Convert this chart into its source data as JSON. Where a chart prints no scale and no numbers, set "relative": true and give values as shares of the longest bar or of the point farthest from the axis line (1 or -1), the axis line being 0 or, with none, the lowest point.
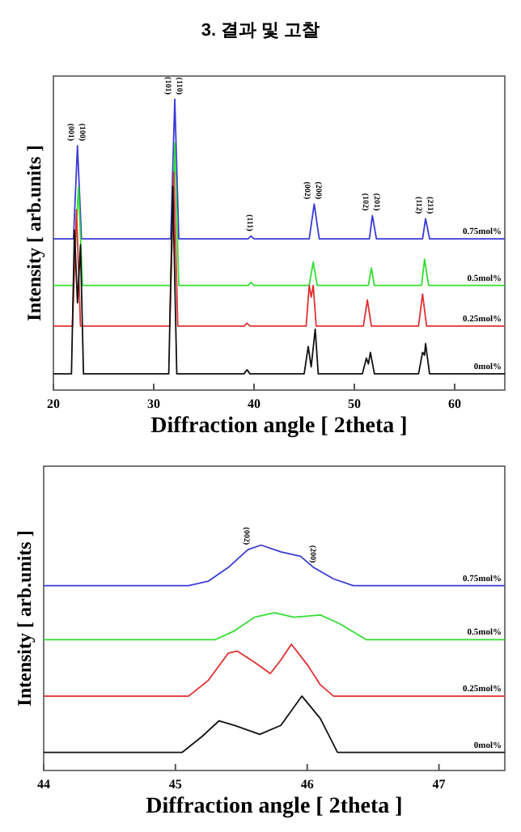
{
  "chart_data": [
    {
      "type": "line",
      "title": "3. 결과 및 고찰",
      "xlabel": "Diffraction angle [ 2theta ]",
      "ylabel": "Intensity [ arb.units ]",
      "relative": true,
      "tick_labels": "x",
      "xlim": [
        20,
        65
      ],
      "xticks": [
        20,
        30,
        40,
        50,
        60
      ],
      "series": [
        {
          "name": "0.75mol%",
          "color": "#3a3ad6",
          "x": [
            20,
            22.0,
            22.4,
            22.8,
            31.7,
            32.1,
            32.5,
            39.4,
            39.7,
            40.0,
            45.5,
            46.0,
            46.5,
            51.5,
            51.8,
            52.2,
            56.8,
            57.1,
            57.5,
            65
          ],
          "values": [
            0.52,
            0.52,
            0.84,
            0.52,
            0.52,
            1.0,
            0.52,
            0.52,
            0.53,
            0.52,
            0.52,
            0.64,
            0.52,
            0.52,
            0.6,
            0.52,
            0.52,
            0.59,
            0.52,
            0.52
          ]
        },
        {
          "name": "0.5mol%",
          "color": "#33dd33",
          "x": [
            20,
            22.0,
            22.5,
            22.9,
            31.7,
            32.1,
            32.5,
            39.4,
            39.7,
            40.0,
            45.5,
            45.9,
            46.3,
            51.4,
            51.7,
            52.0,
            56.7,
            57.0,
            57.4,
            65
          ],
          "values": [
            0.36,
            0.36,
            0.7,
            0.36,
            0.36,
            0.85,
            0.36,
            0.36,
            0.37,
            0.36,
            0.36,
            0.44,
            0.36,
            0.36,
            0.42,
            0.36,
            0.36,
            0.45,
            0.36,
            0.36
          ]
        },
        {
          "name": "0.25mol%",
          "color": "#e03030",
          "x": [
            20,
            21.9,
            22.3,
            22.7,
            31.6,
            32.0,
            32.4,
            39.0,
            39.3,
            39.6,
            45.2,
            45.5,
            45.7,
            45.9,
            46.2,
            50.9,
            51.3,
            51.7,
            56.4,
            56.8,
            57.2,
            65
          ],
          "values": [
            0.22,
            0.22,
            0.62,
            0.22,
            0.22,
            0.75,
            0.22,
            0.22,
            0.23,
            0.22,
            0.22,
            0.36,
            0.32,
            0.36,
            0.22,
            0.22,
            0.31,
            0.22,
            0.22,
            0.33,
            0.22,
            0.22
          ]
        },
        {
          "name": "0mol%",
          "color": "#111111",
          "x": [
            20,
            21.8,
            22.1,
            22.4,
            22.7,
            23.0,
            31.5,
            31.9,
            32.3,
            39.0,
            39.3,
            39.6,
            45.0,
            45.4,
            45.7,
            46.1,
            46.4,
            50.8,
            51.2,
            51.4,
            51.6,
            52.0,
            56.4,
            56.8,
            57.0,
            57.1,
            57.5,
            65
          ],
          "values": [
            0.056,
            0.056,
            0.55,
            0.3,
            0.5,
            0.056,
            0.056,
            0.7,
            0.056,
            0.056,
            0.07,
            0.056,
            0.056,
            0.15,
            0.08,
            0.21,
            0.056,
            0.056,
            0.11,
            0.09,
            0.13,
            0.056,
            0.056,
            0.13,
            0.12,
            0.16,
            0.056,
            0.056
          ]
        }
      ],
      "annotations": [
        {
          "text": "(001)",
          "x": 22.4,
          "y": 0.84
        },
        {
          "text": "(100)",
          "x": 22.4,
          "y": 0.84
        },
        {
          "text": "(101)",
          "x": 32.1,
          "y": 1.0
        },
        {
          "text": "(110)",
          "x": 32.1,
          "y": 1.0
        },
        {
          "text": "(111)",
          "x": 39.7,
          "y": 0.53
        },
        {
          "text": "(002)",
          "x": 46.0,
          "y": 0.64
        },
        {
          "text": "(200)",
          "x": 46.0,
          "y": 0.64
        },
        {
          "text": "(102)",
          "x": 51.8,
          "y": 0.6
        },
        {
          "text": "(201)",
          "x": 51.8,
          "y": 0.6
        },
        {
          "text": "(112)",
          "x": 57.1,
          "y": 0.59
        },
        {
          "text": "(211)",
          "x": 57.1,
          "y": 0.59
        }
      ]
    },
    {
      "type": "line",
      "xlabel": "Diffraction angle [ 2theta ]",
      "ylabel": "Intensity [ arb.units ]",
      "relative": true,
      "tick_labels": "x",
      "xlim": [
        44,
        47.5
      ],
      "xticks": [
        44,
        45,
        46,
        47
      ],
      "series": [
        {
          "name": "0.75mol%",
          "color": "#3a3ad6",
          "x": [
            44,
            45.1,
            45.25,
            45.4,
            45.55,
            45.65,
            45.8,
            45.95,
            46.05,
            46.2,
            46.35,
            47.5
          ],
          "values": [
            0.82,
            0.82,
            0.84,
            0.9,
            0.98,
            1.0,
            0.97,
            0.95,
            0.9,
            0.85,
            0.82,
            0.82
          ]
        },
        {
          "name": "0.5mol%",
          "color": "#33dd33",
          "x": [
            44,
            45.3,
            45.45,
            45.6,
            45.75,
            45.9,
            46.1,
            46.25,
            46.45,
            47.5
          ],
          "values": [
            0.58,
            0.58,
            0.62,
            0.68,
            0.7,
            0.68,
            0.69,
            0.65,
            0.58,
            0.58
          ]
        },
        {
          "name": "0.25mol%",
          "color": "#e03030",
          "x": [
            44,
            45.1,
            45.25,
            45.4,
            45.47,
            45.6,
            45.72,
            45.8,
            45.88,
            46.0,
            46.1,
            46.2,
            47.5
          ],
          "values": [
            0.33,
            0.33,
            0.4,
            0.52,
            0.53,
            0.48,
            0.43,
            0.49,
            0.56,
            0.47,
            0.38,
            0.33,
            0.33
          ]
        },
        {
          "name": "0mol%",
          "color": "#111111",
          "x": [
            44,
            45.05,
            45.2,
            45.33,
            45.45,
            45.64,
            45.8,
            45.96,
            46.1,
            46.23,
            47.5
          ],
          "values": [
            0.08,
            0.08,
            0.15,
            0.22,
            0.2,
            0.16,
            0.2,
            0.33,
            0.23,
            0.08,
            0.08
          ]
        }
      ],
      "annotations": [
        {
          "text": "(002)",
          "x": 45.55,
          "y": 0.98
        },
        {
          "text": "(200)",
          "x": 46.05,
          "y": 0.9
        }
      ]
    }
  ]
}
